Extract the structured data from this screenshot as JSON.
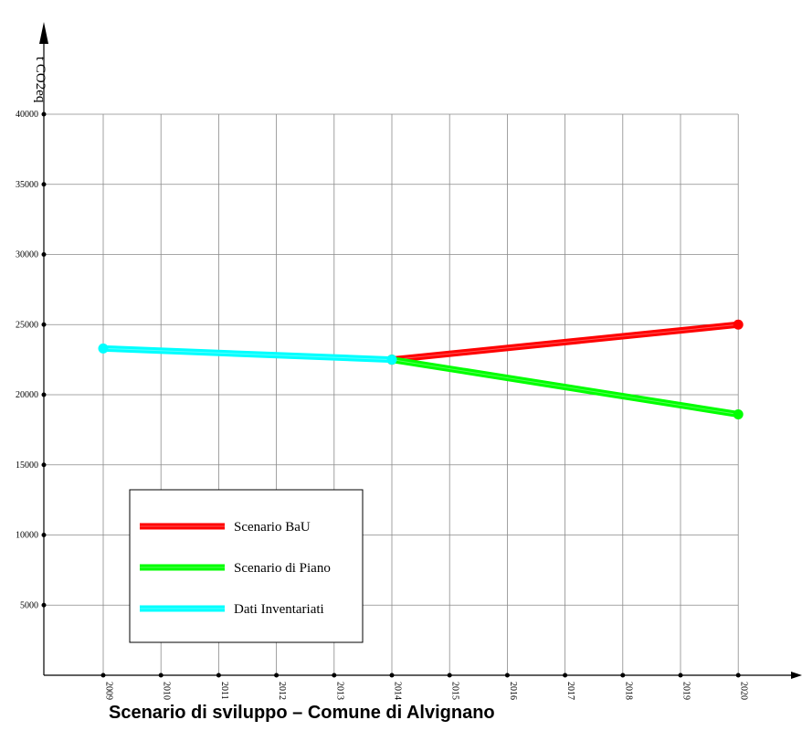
{
  "chart_data": {
    "type": "line",
    "title": "",
    "caption": "Scenario di sviluppo – Comune di Alvignano",
    "xlabel": "",
    "ylabel": "t CO2eq",
    "x": [
      2009,
      2010,
      2011,
      2012,
      2013,
      2014,
      2015,
      2016,
      2017,
      2018,
      2019,
      2020
    ],
    "xlim": [
      2008.0,
      2021.1
    ],
    "ylim": [
      0,
      45000
    ],
    "yticks": [
      5000,
      10000,
      15000,
      20000,
      25000,
      30000,
      35000,
      40000
    ],
    "grid": true,
    "legend_position": "bottom-left",
    "series": [
      {
        "name": "Scenario  BaU",
        "color": "#ff0000",
        "points": [
          [
            2014,
            22500
          ],
          [
            2020,
            25000
          ]
        ]
      },
      {
        "name": "Scenario di Piano",
        "color": "#00ff00",
        "points": [
          [
            2014,
            22500
          ],
          [
            2020,
            18600
          ]
        ]
      },
      {
        "name": "Dati  Inventariati",
        "color": "#00ffff",
        "points": [
          [
            2009,
            23300
          ],
          [
            2014,
            22500
          ]
        ]
      }
    ]
  }
}
